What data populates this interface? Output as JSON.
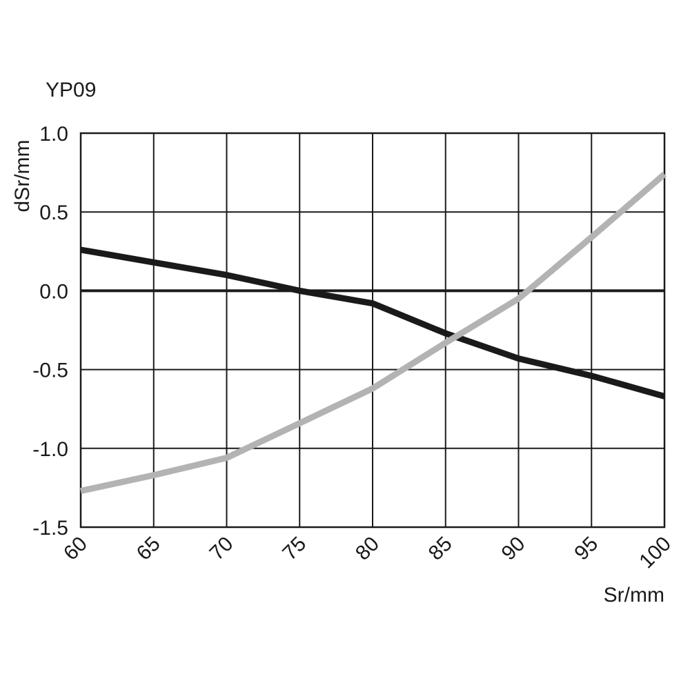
{
  "chart_data": {
    "type": "line",
    "title": "YP09",
    "xlabel": "Sr/mm",
    "ylabel": "dSr/mm",
    "xlim": [
      60,
      100
    ],
    "ylim": [
      -1.5,
      1.0
    ],
    "x_ticks": [
      "60",
      "65",
      "70",
      "75",
      "80",
      "85",
      "90",
      "95",
      "100"
    ],
    "y_ticks": [
      "1.0",
      "0.5",
      "0.0",
      "-0.5",
      "-1.0",
      "-1.5"
    ],
    "grid": true,
    "series": [
      {
        "color": "#1a1a1a",
        "x": [
          60,
          65,
          70,
          75,
          80,
          85,
          90,
          95,
          100
        ],
        "y": [
          0.26,
          0.18,
          0.1,
          0.0,
          -0.08,
          -0.27,
          -0.43,
          -0.54,
          -0.67
        ]
      },
      {
        "color": "#b3b3b3",
        "x": [
          60,
          65,
          70,
          75,
          80,
          85,
          90,
          95,
          100
        ],
        "y": [
          -1.27,
          -1.17,
          -1.06,
          -0.84,
          -0.62,
          -0.33,
          -0.05,
          0.34,
          0.74
        ]
      }
    ]
  }
}
